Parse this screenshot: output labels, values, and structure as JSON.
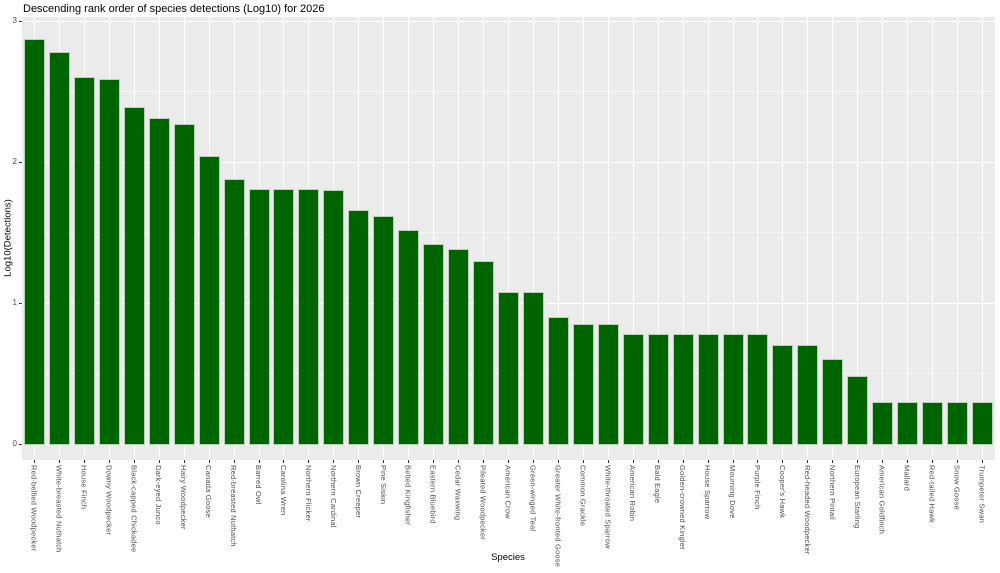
{
  "title": "Descending rank order of species detections (Log10) for 2026",
  "colors": {
    "bar_fill": "#006400",
    "bar_border": "#c3d6c3",
    "panel_background": "#EBEBEB",
    "grid_major": "#FFFFFF",
    "axis_text": "#4D4D4D",
    "title_text": "#000000"
  },
  "chart_data": {
    "type": "bar",
    "title": "Descending rank order of species detections (Log10) for 2026",
    "xlabel": "Species",
    "ylabel": "Log10(Detections)",
    "ylim": [
      0,
      3
    ],
    "y_ticks": [
      0,
      1,
      2,
      3
    ],
    "grid": "gray panel, white major horizontal gridlines at integers, faint minor gridlines at 0.5 steps, vertical white gridlines at each category",
    "legend_position": "none",
    "bar_color": "#006400",
    "categories": [
      "Red-bellied Woodpecker",
      "White-breasted Nuthatch",
      "House Finch",
      "Downy Woodpecker",
      "Black-capped Chickadee",
      "Dark-eyed Junco",
      "Hairy Woodpecker",
      "Canada Goose",
      "Red-breasted Nuthatch",
      "Barred Owl",
      "Carolina Wren",
      "Northern Flicker",
      "Northern Cardinal",
      "Brown Creeper",
      "Pine Siskin",
      "Belted Kingfisher",
      "Eastern Bluebird",
      "Cedar Waxwing",
      "Pileated Woodpecker",
      "American Crow",
      "Green-winged Teal",
      "Greater White-fronted Goose",
      "Common Grackle",
      "White-throated Sparrow",
      "American Robin",
      "Bald Eagle",
      "Golden-crowned Kinglet",
      "House Sparrow",
      "Mourning Dove",
      "Purple Finch",
      "Cooper's Hawk",
      "Red-headed Woodpecker",
      "Northern Pintail",
      "European Starling",
      "American Goldfinch",
      "Mallard",
      "Red-tailed Hawk",
      "Snow Goose",
      "Trumpeter Swan"
    ],
    "values": [
      2.87,
      2.78,
      2.6,
      2.59,
      2.39,
      2.31,
      2.27,
      2.04,
      1.88,
      1.81,
      1.81,
      1.81,
      1.8,
      1.66,
      1.62,
      1.52,
      1.42,
      1.38,
      1.3,
      1.08,
      1.08,
      0.9,
      0.85,
      0.85,
      0.78,
      0.78,
      0.78,
      0.78,
      0.78,
      0.78,
      0.7,
      0.7,
      0.6,
      0.48,
      0.3,
      0.3,
      0.3,
      0.3,
      0.3
    ]
  }
}
